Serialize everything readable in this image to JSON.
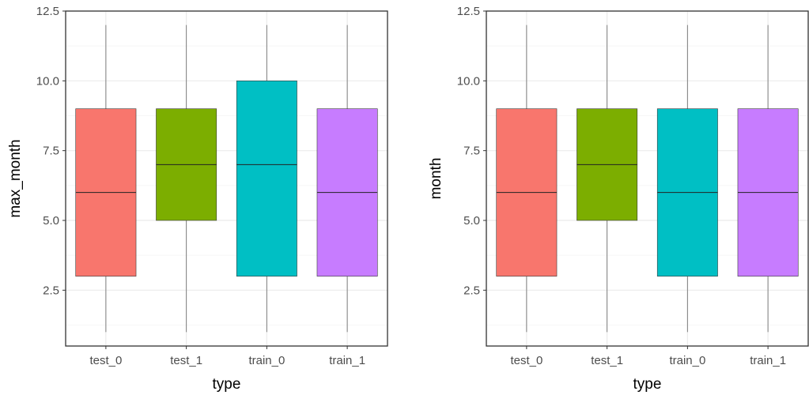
{
  "chart_data": [
    {
      "type": "box",
      "title": "",
      "xlabel": "type",
      "ylabel": "max_month",
      "ylim": [
        0.5,
        12.5
      ],
      "y_ticks": [
        2.5,
        5.0,
        7.5,
        10.0,
        12.5
      ],
      "y_tick_labels": [
        "2.5",
        "5.0",
        "7.5",
        "10.0",
        "12.5"
      ],
      "grid": true,
      "categories": [
        "test_0",
        "test_1",
        "train_0",
        "train_1"
      ],
      "boxes": [
        {
          "category": "test_0",
          "min": 1,
          "q1": 3,
          "median": 6,
          "q3": 9,
          "max": 12
        },
        {
          "category": "test_1",
          "min": 1,
          "q1": 5,
          "median": 7,
          "q3": 9,
          "max": 12
        },
        {
          "category": "train_0",
          "min": 1,
          "q1": 3,
          "median": 7,
          "q3": 10,
          "max": 12
        },
        {
          "category": "train_1",
          "min": 1,
          "q1": 3,
          "median": 6,
          "q3": 9,
          "max": 12
        }
      ]
    },
    {
      "type": "box",
      "title": "",
      "xlabel": "type",
      "ylabel": "month",
      "ylim": [
        0.5,
        12.5
      ],
      "y_ticks": [
        2.5,
        5.0,
        7.5,
        10.0,
        12.5
      ],
      "y_tick_labels": [
        "2.5",
        "5.0",
        "7.5",
        "10.0",
        "12.5"
      ],
      "grid": true,
      "categories": [
        "test_0",
        "test_1",
        "train_0",
        "train_1"
      ],
      "boxes": [
        {
          "category": "test_0",
          "min": 1,
          "q1": 3,
          "median": 6,
          "q3": 9,
          "max": 12
        },
        {
          "category": "test_1",
          "min": 1,
          "q1": 5,
          "median": 7,
          "q3": 9,
          "max": 12
        },
        {
          "category": "train_0",
          "min": 1,
          "q1": 3,
          "median": 6,
          "q3": 9,
          "max": 12
        },
        {
          "category": "train_1",
          "min": 1,
          "q1": 3,
          "median": 6,
          "q3": 9,
          "max": 12
        }
      ]
    }
  ],
  "colors": {
    "test_0": "#F8766D",
    "test_1": "#7CAE00",
    "train_0": "#00BFC4",
    "train_1": "#C77CFF",
    "grid_major": "#ebebeb",
    "grid_minor": "#f5f5f5",
    "panel_border": "#333333",
    "whisker": "#7f7f7f"
  }
}
